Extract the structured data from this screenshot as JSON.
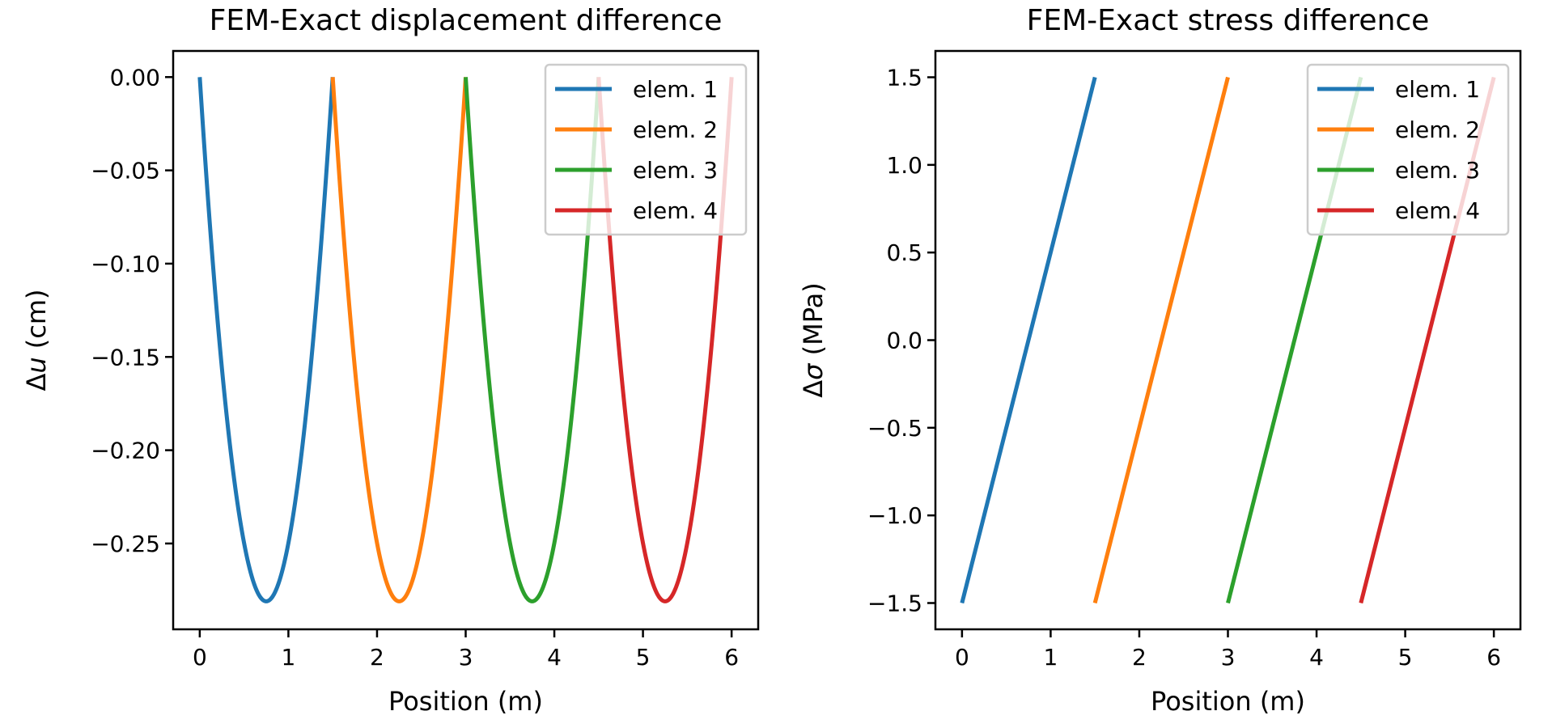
{
  "chart_data": [
    {
      "type": "line",
      "title": "FEM-Exact displacement difference",
      "xlabel": "Position (m)",
      "ylabel": {
        "prefix": "Δ",
        "symbol": "u",
        "unit": " (cm)"
      },
      "xlim": [
        -0.3,
        6.3
      ],
      "ylim": [
        -0.296,
        0.014
      ],
      "xticks": [
        0,
        1,
        2,
        3,
        4,
        5,
        6
      ],
      "xtick_labels": [
        "0",
        "1",
        "2",
        "3",
        "4",
        "5",
        "6"
      ],
      "yticks": [
        0.0,
        -0.05,
        -0.1,
        -0.15,
        -0.2,
        -0.25
      ],
      "ytick_labels": [
        "0.00",
        "−0.05",
        "−0.10",
        "−0.15",
        "−0.20",
        "−0.25"
      ],
      "legend_position": "upper right",
      "grid": false,
      "curve": "parabola",
      "series": [
        {
          "name": "elem. 1",
          "color": "#1f77b4",
          "x": [
            0,
            0.75,
            1.5
          ],
          "y": [
            0,
            -0.281,
            0
          ]
        },
        {
          "name": "elem. 2",
          "color": "#ff7f0e",
          "x": [
            1.5,
            2.25,
            3.0
          ],
          "y": [
            0,
            -0.281,
            0
          ]
        },
        {
          "name": "elem. 3",
          "color": "#2ca02c",
          "x": [
            3.0,
            3.75,
            4.5
          ],
          "y": [
            0,
            -0.281,
            0
          ]
        },
        {
          "name": "elem. 4",
          "color": "#d62728",
          "x": [
            4.5,
            5.25,
            6.0
          ],
          "y": [
            0,
            -0.281,
            0
          ]
        }
      ]
    },
    {
      "type": "line",
      "title": "FEM-Exact stress difference",
      "xlabel": "Position (m)",
      "ylabel": {
        "prefix": "Δ",
        "symbol": "σ",
        "unit": " (MPa)"
      },
      "xlim": [
        -0.3,
        6.3
      ],
      "ylim": [
        -1.65,
        1.65
      ],
      "xticks": [
        0,
        1,
        2,
        3,
        4,
        5,
        6
      ],
      "xtick_labels": [
        "0",
        "1",
        "2",
        "3",
        "4",
        "5",
        "6"
      ],
      "yticks": [
        1.5,
        1.0,
        0.5,
        0.0,
        -0.5,
        -1.0,
        -1.5
      ],
      "ytick_labels": [
        "1.5",
        "1.0",
        "0.5",
        "0.0",
        "−0.5",
        "−1.0",
        "−1.5"
      ],
      "legend_position": "upper right",
      "grid": false,
      "curve": "linear",
      "series": [
        {
          "name": "elem. 1",
          "color": "#1f77b4",
          "x": [
            0,
            1.5
          ],
          "y": [
            -1.5,
            1.5
          ]
        },
        {
          "name": "elem. 2",
          "color": "#ff7f0e",
          "x": [
            1.5,
            3.0
          ],
          "y": [
            -1.5,
            1.5
          ]
        },
        {
          "name": "elem. 3",
          "color": "#2ca02c",
          "x": [
            3.0,
            4.5
          ],
          "y": [
            -1.5,
            1.5
          ]
        },
        {
          "name": "elem. 4",
          "color": "#d62728",
          "x": [
            4.5,
            6.0
          ],
          "y": [
            -1.5,
            1.5
          ]
        }
      ]
    }
  ]
}
